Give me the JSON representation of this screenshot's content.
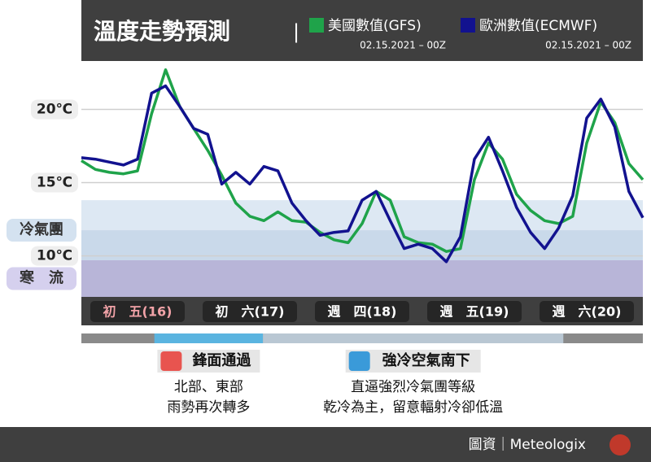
{
  "chart_data": {
    "type": "line",
    "title": "溫度走勢預測",
    "x": [
      0,
      3,
      6,
      9,
      12,
      15,
      18,
      21,
      24,
      27,
      30,
      33,
      36,
      39,
      42,
      45,
      48,
      51,
      54,
      57,
      60,
      63,
      66,
      69,
      72,
      75,
      78,
      81,
      84,
      87,
      90,
      93,
      96,
      99,
      102,
      105,
      108,
      111,
      114,
      117,
      120
    ],
    "series": [
      {
        "name": "美國數值(GFS)",
        "run": "02.15.2021 – 00Z",
        "color": "#1fa34a",
        "values": [
          16.5,
          15.9,
          15.7,
          15.6,
          15.8,
          19.7,
          22.7,
          20.2,
          18.7,
          17.2,
          15.5,
          13.6,
          12.7,
          12.4,
          13.0,
          12.4,
          12.3,
          11.6,
          11.1,
          10.9,
          12.2,
          14.4,
          13.8,
          11.3,
          10.9,
          10.8,
          10.3,
          10.5,
          15.2,
          17.7,
          16.6,
          14.2,
          13.1,
          12.4,
          12.2,
          12.7,
          17.7,
          20.5,
          19.1,
          16.3,
          15.2
        ]
      },
      {
        "name": "歐洲數值(ECMWF)",
        "run": "02.15.2021 – 00Z",
        "color": "#12128f",
        "values": [
          16.7,
          16.6,
          16.4,
          16.2,
          16.6,
          21.1,
          21.6,
          20.2,
          18.7,
          18.3,
          14.9,
          15.7,
          14.9,
          16.1,
          15.8,
          13.6,
          12.4,
          11.4,
          11.6,
          11.7,
          13.8,
          14.4,
          12.4,
          10.5,
          10.8,
          10.5,
          9.6,
          11.3,
          16.6,
          18.1,
          15.8,
          13.3,
          11.6,
          10.5,
          11.9,
          14.1,
          19.4,
          20.7,
          18.8,
          14.4,
          12.6
        ]
      }
    ],
    "xlim": [
      0,
      120
    ],
    "xticks": [
      {
        "value": 12,
        "label": "初　五(16)"
      },
      {
        "value": 36,
        "label": "初　六(17)"
      },
      {
        "value": 60,
        "label": "週　四(18)"
      },
      {
        "value": 84,
        "label": "週　五(19)"
      },
      {
        "value": 108,
        "label": "週　六(20)"
      }
    ],
    "ylim": [
      7.2,
      23.3
    ],
    "yticks": [
      {
        "value": 20,
        "label": "20℃"
      },
      {
        "value": 15,
        "label": "15℃"
      },
      {
        "value": 10,
        "label": "10℃"
      }
    ],
    "grid": true,
    "bands": [
      {
        "label": "冷氣團",
        "from": 9.7,
        "to": 13.8
      },
      {
        "label": "寒　流",
        "from": 7.2,
        "to": 9.7
      }
    ],
    "periods": [
      {
        "title": "鋒面通過",
        "from": 15.6,
        "to": 38.8,
        "lines": [
          "北部、東部",
          "雨勢再次轉多"
        ]
      },
      {
        "title": "強冷空氣南下",
        "from": 38.8,
        "to": 103,
        "lines": [
          "直逼強烈冷氣團等級",
          "乾冷為主，留意輻射冷卻低溫"
        ]
      }
    ],
    "source": "圖資｜Meteologix"
  }
}
